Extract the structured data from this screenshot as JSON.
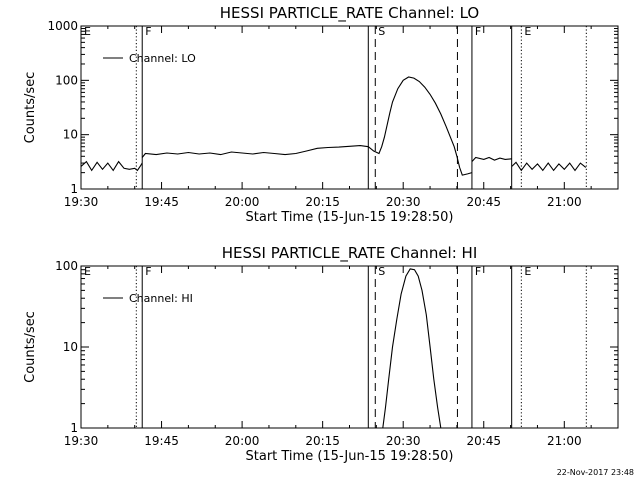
{
  "chart_data": [
    {
      "type": "line",
      "title": "HESSI PARTICLE_RATE Channel: LO",
      "xlabel": "Start Time (15-Jun-15 19:28:50)",
      "ylabel": "Counts/sec",
      "x_unit": "minutes after 19:30",
      "xlim": [
        0,
        100
      ],
      "ylim": [
        1,
        1000
      ],
      "yscale": "log",
      "grid": false,
      "legend": {
        "position": "top-left",
        "entries": [
          "Channel: LO"
        ]
      },
      "x_ticks": [
        {
          "x": 0,
          "label": "19:30"
        },
        {
          "x": 15,
          "label": "19:45"
        },
        {
          "x": 30,
          "label": "20:00"
        },
        {
          "x": 45,
          "label": "20:15"
        },
        {
          "x": 60,
          "label": "20:30"
        },
        {
          "x": 75,
          "label": "20:45"
        },
        {
          "x": 90,
          "label": "21:00"
        }
      ],
      "y_ticks": [
        {
          "y": 1,
          "label": "1"
        },
        {
          "y": 10,
          "label": "10"
        },
        {
          "y": 100,
          "label": "100"
        },
        {
          "y": 1000,
          "label": "1000"
        }
      ],
      "markers": [
        {
          "x": 0,
          "style": "solid",
          "label": "E"
        },
        {
          "x": 10.3,
          "style": "dotted",
          "label": ""
        },
        {
          "x": 11.4,
          "style": "solid",
          "label": "F"
        },
        {
          "x": 53.5,
          "style": "solid",
          "label": ""
        },
        {
          "x": 54.8,
          "style": "dashed",
          "label": "S"
        },
        {
          "x": 70.1,
          "style": "dashed",
          "label": ""
        },
        {
          "x": 72.8,
          "style": "solid",
          "label": "F"
        },
        {
          "x": 80.2,
          "style": "solid",
          "label": ""
        },
        {
          "x": 82.0,
          "style": "dotted",
          "label": "E"
        },
        {
          "x": 94.1,
          "style": "dotted",
          "label": ""
        }
      ],
      "series": [
        {
          "name": "Channel: LO",
          "segments": [
            {
              "x": [
                0,
                1,
                2,
                3,
                4,
                5,
                6,
                7,
                8,
                9,
                10,
                10.5,
                11,
                11.4
              ],
              "y": [
                2.6,
                3.2,
                2.2,
                3.1,
                2.3,
                3.0,
                2.2,
                3.2,
                2.4,
                2.3,
                2.4,
                2.2,
                2.6,
                3.0
              ]
            },
            {
              "x": [
                11.4,
                12,
                14,
                16,
                18,
                20,
                22,
                24,
                26,
                28,
                30,
                32,
                34,
                36,
                38,
                40,
                42,
                44,
                46,
                48,
                50,
                52,
                53.5,
                54.5,
                55.5,
                56,
                56.5,
                57,
                57.5,
                58,
                59,
                60,
                61,
                62,
                63,
                64,
                65,
                66,
                67,
                68,
                69,
                69.5,
                70,
                70.5,
                71,
                72,
                72.8
              ],
              "y": [
                3.8,
                4.5,
                4.3,
                4.6,
                4.4,
                4.7,
                4.4,
                4.6,
                4.3,
                4.8,
                4.6,
                4.4,
                4.7,
                4.5,
                4.3,
                4.5,
                5.0,
                5.6,
                5.8,
                5.9,
                6.1,
                6.3,
                6.0,
                5.0,
                4.5,
                6.0,
                9.0,
                15,
                25,
                40,
                70,
                100,
                115,
                110,
                95,
                75,
                55,
                38,
                24,
                14,
                8,
                6,
                4.0,
                2.5,
                1.8,
                1.9,
                2.0
              ]
            },
            {
              "x": [
                72.8,
                73.5,
                75,
                76,
                77,
                78,
                79,
                80.2
              ],
              "y": [
                3.2,
                3.8,
                3.5,
                3.8,
                3.4,
                3.7,
                3.5,
                3.6
              ]
            },
            {
              "x": [
                80.2,
                81,
                82,
                83,
                84,
                85,
                86,
                87,
                88,
                89,
                90,
                91,
                92,
                93,
                94
              ],
              "y": [
                2.6,
                3.1,
                2.2,
                3.0,
                2.3,
                2.9,
                2.2,
                3.0,
                2.2,
                2.9,
                2.3,
                3.0,
                2.2,
                3.0,
                2.5
              ]
            }
          ]
        }
      ]
    },
    {
      "type": "line",
      "title": "HESSI PARTICLE_RATE Channel: HI",
      "xlabel": "Start Time (15-Jun-15 19:28:50)",
      "ylabel": "Counts/sec",
      "x_unit": "minutes after 19:30",
      "xlim": [
        0,
        100
      ],
      "ylim": [
        1,
        100
      ],
      "yscale": "log",
      "grid": false,
      "legend": {
        "position": "top-left",
        "entries": [
          "Channel: HI"
        ]
      },
      "x_ticks": [
        {
          "x": 0,
          "label": "19:30"
        },
        {
          "x": 15,
          "label": "19:45"
        },
        {
          "x": 30,
          "label": "20:00"
        },
        {
          "x": 45,
          "label": "20:15"
        },
        {
          "x": 60,
          "label": "20:30"
        },
        {
          "x": 75,
          "label": "20:45"
        },
        {
          "x": 90,
          "label": "21:00"
        }
      ],
      "y_ticks": [
        {
          "y": 1,
          "label": "1"
        },
        {
          "y": 10,
          "label": "10"
        },
        {
          "y": 100,
          "label": "100"
        }
      ],
      "markers": [
        {
          "x": 0,
          "style": "solid",
          "label": "E"
        },
        {
          "x": 10.3,
          "style": "dotted",
          "label": ""
        },
        {
          "x": 11.4,
          "style": "solid",
          "label": "F"
        },
        {
          "x": 53.5,
          "style": "solid",
          "label": ""
        },
        {
          "x": 54.8,
          "style": "dashed",
          "label": "S"
        },
        {
          "x": 70.1,
          "style": "dashed",
          "label": ""
        },
        {
          "x": 72.8,
          "style": "solid",
          "label": "F"
        },
        {
          "x": 80.2,
          "style": "solid",
          "label": ""
        },
        {
          "x": 82.0,
          "style": "dotted",
          "label": "E"
        },
        {
          "x": 94.1,
          "style": "dotted",
          "label": ""
        }
      ],
      "series": [
        {
          "name": "Channel: HI",
          "segments": [
            {
              "x": [
                56.2,
                56.7,
                57.3,
                58,
                58.8,
                59.6,
                60.5,
                61.3,
                62.1,
                62.8,
                63.5,
                64.3,
                65,
                65.7,
                66.4,
                67
              ],
              "y": [
                1,
                1.8,
                4,
                10,
                22,
                45,
                75,
                92,
                90,
                75,
                50,
                25,
                10,
                4,
                1.8,
                1
              ]
            }
          ]
        }
      ]
    }
  ],
  "footer": {
    "timestamp": "22-Nov-2017 23:48"
  }
}
